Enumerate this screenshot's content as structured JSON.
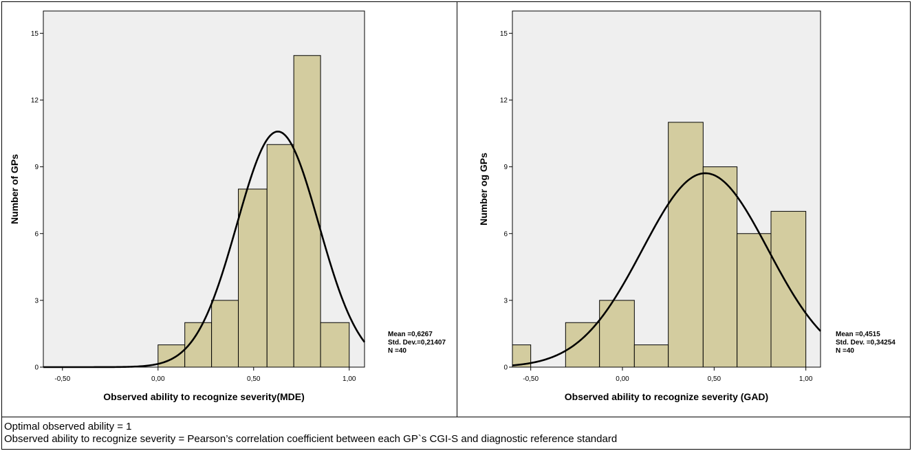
{
  "chart_data": [
    {
      "type": "histogram",
      "xlabel": "Observed ability to recognize severity(MDE)",
      "ylabel": "Number of GPs",
      "xlim": [
        -0.6,
        1.08
      ],
      "ylim": [
        0,
        16
      ],
      "xticks": [
        "-0,50",
        "0,00",
        "0,50",
        "1,00"
      ],
      "yticks": [
        "0",
        "3",
        "6",
        "9",
        "12",
        "15"
      ],
      "bins": [
        {
          "start": 0.0,
          "end": 0.14,
          "count": 1
        },
        {
          "start": 0.14,
          "end": 0.28,
          "count": 2
        },
        {
          "start": 0.28,
          "end": 0.42,
          "count": 3
        },
        {
          "start": 0.42,
          "end": 0.57,
          "count": 8
        },
        {
          "start": 0.57,
          "end": 0.71,
          "count": 10
        },
        {
          "start": 0.71,
          "end": 0.85,
          "count": 14
        },
        {
          "start": 0.85,
          "end": 1.0,
          "count": 2
        }
      ],
      "normal_curve": {
        "mean": 0.6267,
        "sd": 0.21407,
        "n": 40,
        "bin_width": 0.142
      },
      "stats": [
        "Mean =0,6267",
        "Std. Dev.=0,21407",
        "N =40"
      ],
      "colors": {
        "bar": "#d3cc9f",
        "plot_bg": "#efefef",
        "curve": "#000000"
      },
      "grid": false
    },
    {
      "type": "histogram",
      "xlabel": "Observed ability to recognize severity (GAD)",
      "ylabel": "Number og GPs",
      "xlim": [
        -0.6,
        1.08
      ],
      "ylim": [
        0,
        16
      ],
      "xticks": [
        "-0,50",
        "0,00",
        "0,50",
        "1,00"
      ],
      "yticks": [
        "0",
        "3",
        "6",
        "9",
        "12",
        "15"
      ],
      "bins": [
        {
          "start": -0.6,
          "end": -0.5,
          "count": 1
        },
        {
          "start": -0.31,
          "end": -0.125,
          "count": 2
        },
        {
          "start": -0.125,
          "end": 0.065,
          "count": 3
        },
        {
          "start": 0.065,
          "end": 0.25,
          "count": 1
        },
        {
          "start": 0.25,
          "end": 0.44,
          "count": 11
        },
        {
          "start": 0.44,
          "end": 0.625,
          "count": 9
        },
        {
          "start": 0.625,
          "end": 0.81,
          "count": 6
        },
        {
          "start": 0.81,
          "end": 1.0,
          "count": 7
        }
      ],
      "normal_curve": {
        "mean": 0.4515,
        "sd": 0.34254,
        "n": 40,
        "bin_width": 0.187
      },
      "stats": [
        "Mean =0,4515",
        "Std. Dev. =0,34254",
        "N =40"
      ],
      "colors": {
        "bar": "#d3cc9f",
        "plot_bg": "#efefef",
        "curve": "#000000"
      },
      "grid": false
    }
  ],
  "footnotes": [
    "Optimal observed ability = 1",
    "Observed ability to recognize severity  = Pearson’s correlation coefficient between each GP`s CGI-S and diagnostic reference standard"
  ]
}
